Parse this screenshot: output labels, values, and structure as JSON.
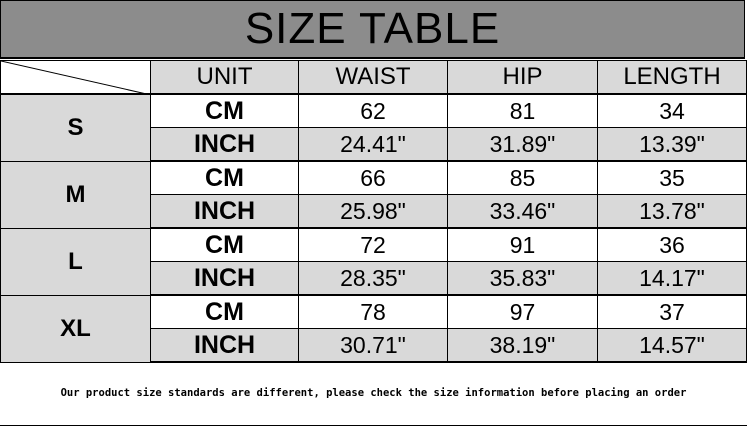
{
  "title": "SIZE TABLE",
  "columns": [
    "UNIT",
    "WAIST",
    "HIP",
    "LENGTH"
  ],
  "rows": [
    {
      "size": "S",
      "cm": {
        "unit": "CM",
        "waist": "62",
        "hip": "81",
        "length": "34"
      },
      "inch": {
        "unit": "INCH",
        "waist": "24.41\"",
        "hip": "31.89\"",
        "length": "13.39\""
      }
    },
    {
      "size": "M",
      "cm": {
        "unit": "CM",
        "waist": "66",
        "hip": "85",
        "length": "35"
      },
      "inch": {
        "unit": "INCH",
        "waist": "25.98\"",
        "hip": "33.46\"",
        "length": "13.78\""
      }
    },
    {
      "size": "L",
      "cm": {
        "unit": "CM",
        "waist": "72",
        "hip": "91",
        "length": "36"
      },
      "inch": {
        "unit": "INCH",
        "waist": "28.35\"",
        "hip": "35.83\"",
        "length": "14.17\""
      }
    },
    {
      "size": "XL",
      "cm": {
        "unit": "CM",
        "waist": "78",
        "hip": "97",
        "length": "37"
      },
      "inch": {
        "unit": "INCH",
        "waist": "30.71\"",
        "hip": "38.19\"",
        "length": "14.57\""
      }
    }
  ],
  "footer": "Our product size standards are different, please check the size information before placing an order",
  "colors": {
    "title_bg": "#8c8c8c",
    "cell_gray": "#d9d9d9"
  }
}
